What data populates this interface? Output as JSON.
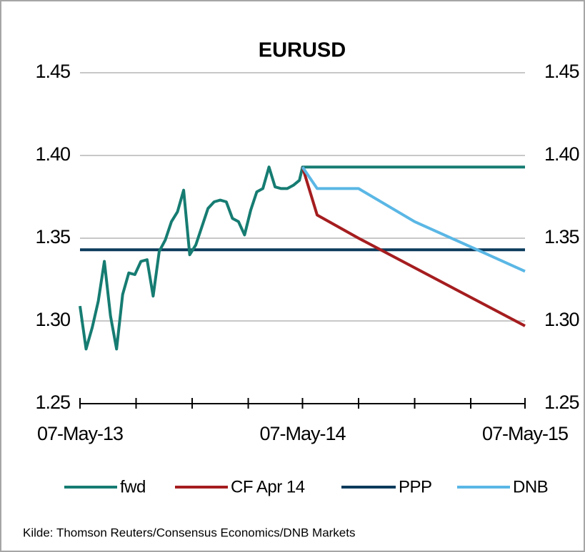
{
  "chart_data": {
    "type": "line",
    "title": "EURUSD",
    "source": "Kilde: Thomson  Reuters/Consensus  Economics/DNB  Markets",
    "ylim": [
      1.25,
      1.45
    ],
    "yticks": [
      1.25,
      {
        "value": 1.3,
        "label": "1.30"
      },
      1.35,
      {
        "value": 1.4,
        "label": "1.40"
      },
      1.45
    ],
    "xlim": [
      "2013-05-07",
      "2015-05-07"
    ],
    "xticks": [
      {
        "value": "2013-05-07",
        "label": "07-May-13"
      },
      {
        "value": "2014-05-07",
        "label": "07-May-14"
      },
      {
        "value": "2015-05-07",
        "label": "07-May-15"
      }
    ],
    "xticks_minor": [
      "2013-08-07",
      "2013-11-07",
      "2014-02-07",
      "2014-08-07",
      "2014-11-07",
      "2015-02-07"
    ],
    "grid": true,
    "legend": "bottom",
    "series": [
      {
        "name": "fwd",
        "color": "#167c72",
        "x": [
          "2013-05-07",
          "2013-05-17",
          "2013-05-27",
          "2013-06-06",
          "2013-06-16",
          "2013-06-26",
          "2013-07-06",
          "2013-07-16",
          "2013-07-26",
          "2013-08-05",
          "2013-08-15",
          "2013-08-25",
          "2013-09-04",
          "2013-09-14",
          "2013-09-24",
          "2013-10-04",
          "2013-10-14",
          "2013-10-24",
          "2013-11-03",
          "2013-11-13",
          "2013-11-23",
          "2013-12-03",
          "2013-12-13",
          "2013-12-23",
          "2014-01-02",
          "2014-01-12",
          "2014-01-22",
          "2014-02-01",
          "2014-02-11",
          "2014-02-21",
          "2014-03-03",
          "2014-03-13",
          "2014-03-23",
          "2014-04-02",
          "2014-04-12",
          "2014-04-22",
          "2014-05-02",
          "2014-05-07",
          "2015-05-07"
        ],
        "values": [
          1.309,
          1.283,
          1.296,
          1.312,
          1.336,
          1.303,
          1.283,
          1.316,
          1.329,
          1.328,
          1.336,
          1.337,
          1.315,
          1.342,
          1.349,
          1.36,
          1.366,
          1.379,
          1.34,
          1.346,
          1.357,
          1.368,
          1.372,
          1.373,
          1.372,
          1.362,
          1.36,
          1.352,
          1.367,
          1.378,
          1.38,
          1.393,
          1.381,
          1.38,
          1.38,
          1.382,
          1.385,
          1.393,
          1.393
        ]
      },
      {
        "name": "CF Apr 14",
        "color": "#a51d1f",
        "x": [
          "2014-05-07",
          "2014-05-31",
          "2014-08-07",
          "2015-05-07"
        ],
        "values": [
          1.393,
          1.364,
          1.35,
          1.297
        ]
      },
      {
        "name": "PPP",
        "color": "#0c3b5c",
        "x": [
          "2013-05-07",
          "2015-05-07"
        ],
        "values": [
          1.343,
          1.343
        ]
      },
      {
        "name": "DNB",
        "color": "#5ab7e5",
        "x": [
          "2014-05-07",
          "2014-05-31",
          "2014-08-07",
          "2014-11-07",
          "2015-05-07"
        ],
        "values": [
          1.393,
          1.38,
          1.38,
          1.36,
          1.33
        ]
      }
    ]
  }
}
